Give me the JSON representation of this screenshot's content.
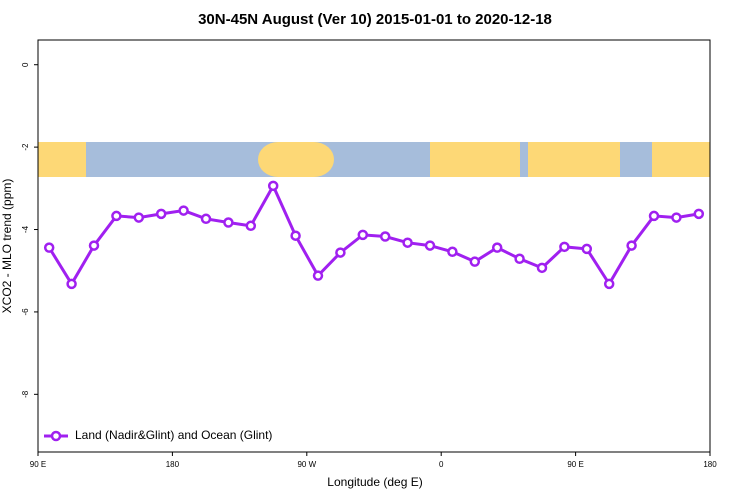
{
  "chart_data": {
    "type": "line",
    "title": "30N-45N August (Ver 10)   2015-01-01 to 2020-12-18",
    "x_label": "Longitude (deg E)",
    "y_label": "XCO2 - MLO trend (ppm)",
    "x": [
      97.5,
      112.5,
      127.5,
      142.5,
      157.5,
      172.5,
      187.5,
      202.5,
      217.5,
      232.5,
      247.5,
      262.5,
      277.5,
      292.5,
      307.5,
      322.5,
      337.5,
      352.5,
      367.5,
      382.5,
      397.5,
      412.5,
      427.5,
      442.5,
      457.5,
      472.5,
      487.5,
      502.5,
      517.5,
      532.5
    ],
    "series": [
      {
        "name": "Land (Nadir&Glint) and Ocean (Glint)",
        "color": "#a020f0",
        "values": [
          -4.44,
          -5.32,
          -4.39,
          -3.67,
          -3.71,
          -3.62,
          -3.54,
          -3.74,
          -3.83,
          -3.91,
          -2.94,
          -4.15,
          -5.12,
          -4.56,
          -4.13,
          -4.17,
          -4.32,
          -4.39,
          -4.54,
          -4.78,
          -4.44,
          -4.71,
          -4.93,
          -4.42,
          -4.47,
          -5.32,
          -4.39,
          -3.67,
          -3.71,
          -3.62
        ]
      }
    ],
    "xlim": [
      90,
      540
    ],
    "xticks": [
      {
        "value": 90,
        "label": "90 E"
      },
      180,
      {
        "value": 270,
        "label": "90 W"
      },
      {
        "value": 360,
        "label": "0"
      },
      {
        "value": 450,
        "label": "90 E"
      },
      {
        "value": 540,
        "label": "180"
      }
    ],
    "ylim": [
      -9.4,
      0.6
    ],
    "yticks": [
      0,
      -2,
      -4,
      -6,
      -8
    ],
    "legend": "bottom-left"
  }
}
